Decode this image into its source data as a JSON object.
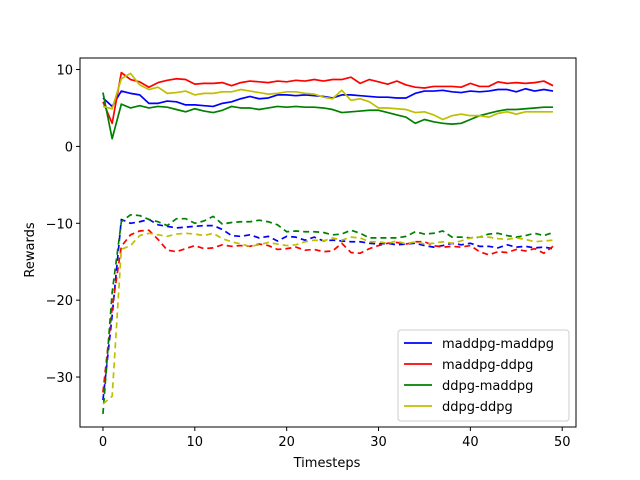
{
  "chart_data": {
    "type": "line",
    "title": "",
    "xlabel": "Timesteps",
    "ylabel": "Rewards",
    "xlim": [
      -2.5,
      51.5
    ],
    "ylim": [
      -36.5,
      11.5
    ],
    "xticks": [
      0,
      10,
      20,
      30,
      40,
      50
    ],
    "yticks": [
      10,
      0,
      -10,
      -20,
      -30
    ],
    "xtick_labels": [
      "0",
      "10",
      "20",
      "30",
      "40",
      "50"
    ],
    "ytick_labels": [
      "10",
      "0",
      "−10",
      "−20",
      "−30"
    ],
    "grid": false,
    "legend_position": "lower-right",
    "x": [
      0,
      1,
      2,
      3,
      4,
      5,
      6,
      7,
      8,
      9,
      10,
      11,
      12,
      13,
      14,
      15,
      16,
      17,
      18,
      19,
      20,
      21,
      22,
      23,
      24,
      25,
      26,
      27,
      28,
      29,
      30,
      31,
      32,
      33,
      34,
      35,
      36,
      37,
      38,
      39,
      40,
      41,
      42,
      43,
      44,
      45,
      46,
      47,
      48,
      49
    ],
    "series": [
      {
        "name": "maddpg-maddpg",
        "color": "#0000ff",
        "solid": [
          6.3,
          5.2,
          7.2,
          6.9,
          6.7,
          5.6,
          5.6,
          5.9,
          5.8,
          5.4,
          5.4,
          5.3,
          5.2,
          5.6,
          5.8,
          6.2,
          6.5,
          6.2,
          6.3,
          6.7,
          6.7,
          6.6,
          6.7,
          6.6,
          6.5,
          6.3,
          6.7,
          6.7,
          6.6,
          6.5,
          6.4,
          6.4,
          6.3,
          6.3,
          6.9,
          7.2,
          7.2,
          7.3,
          7.1,
          7.0,
          7.2,
          7.1,
          7.2,
          7.4,
          7.4,
          7.1,
          7.5,
          7.2,
          7.4,
          7.2
        ],
        "dashed": [
          -33.0,
          -22.0,
          -9.5,
          -10.0,
          -9.8,
          -9.5,
          -10.2,
          -10.4,
          -10.6,
          -10.5,
          -10.4,
          -10.3,
          -10.3,
          -10.8,
          -11.6,
          -11.7,
          -11.5,
          -11.9,
          -11.7,
          -12.3,
          -11.7,
          -11.8,
          -12.2,
          -11.8,
          -12.3,
          -12.2,
          -12.3,
          -12.4,
          -12.4,
          -12.6,
          -12.7,
          -12.6,
          -12.8,
          -12.7,
          -12.6,
          -12.9,
          -13.1,
          -12.9,
          -12.6,
          -12.8,
          -12.6,
          -13.0,
          -13.0,
          -13.2,
          -12.8,
          -13.1,
          -13.0,
          -13.2,
          -13.1,
          -13.3
        ]
      },
      {
        "name": "maddpg-ddpg",
        "color": "#ff0000",
        "solid": [
          5.8,
          3.0,
          9.6,
          8.7,
          8.4,
          7.7,
          8.3,
          8.6,
          8.8,
          8.7,
          8.1,
          8.2,
          8.2,
          8.3,
          7.9,
          8.3,
          8.5,
          8.4,
          8.3,
          8.5,
          8.4,
          8.6,
          8.5,
          8.7,
          8.5,
          8.7,
          8.7,
          9.0,
          8.2,
          8.7,
          8.4,
          8.1,
          8.5,
          8.0,
          7.7,
          7.6,
          7.8,
          7.8,
          7.8,
          7.7,
          8.2,
          7.8,
          7.8,
          8.4,
          8.2,
          8.3,
          8.2,
          8.3,
          8.5,
          7.9
        ],
        "dashed": [
          -32.0,
          -21.0,
          -13.0,
          -11.5,
          -11.0,
          -10.9,
          -12.1,
          -13.5,
          -13.7,
          -13.3,
          -12.9,
          -13.3,
          -13.2,
          -12.8,
          -13.0,
          -12.9,
          -13.0,
          -12.7,
          -12.9,
          -13.4,
          -13.3,
          -13.1,
          -13.5,
          -13.4,
          -13.7,
          -13.6,
          -12.6,
          -13.8,
          -13.9,
          -13.3,
          -12.9,
          -12.6,
          -12.5,
          -12.7,
          -12.4,
          -12.4,
          -12.9,
          -13.1,
          -13.0,
          -13.1,
          -12.9,
          -13.7,
          -14.1,
          -13.7,
          -13.8,
          -13.4,
          -13.6,
          -13.3,
          -13.9,
          -13.0
        ]
      },
      {
        "name": "ddpg-maddpg",
        "color": "#008000",
        "solid": [
          7.0,
          1.0,
          5.5,
          5.0,
          5.3,
          5.0,
          5.2,
          5.1,
          4.8,
          4.5,
          4.9,
          4.6,
          4.4,
          4.7,
          5.2,
          5.0,
          5.0,
          4.8,
          5.0,
          5.2,
          5.1,
          5.2,
          5.1,
          5.1,
          5.0,
          4.8,
          4.4,
          4.5,
          4.6,
          4.7,
          4.7,
          4.4,
          4.1,
          3.8,
          3.0,
          3.5,
          3.2,
          3.0,
          2.9,
          3.0,
          3.5,
          4.0,
          4.3,
          4.6,
          4.8,
          4.8,
          4.9,
          5.0,
          5.1,
          5.1
        ],
        "dashed": [
          -34.8,
          -19.0,
          -9.8,
          -8.9,
          -9.0,
          -9.5,
          -9.8,
          -10.3,
          -9.4,
          -9.4,
          -10.0,
          -9.7,
          -9.1,
          -10.1,
          -9.9,
          -9.8,
          -9.8,
          -9.6,
          -9.8,
          -10.2,
          -11.1,
          -11.0,
          -11.1,
          -11.1,
          -11.2,
          -11.5,
          -11.4,
          -10.9,
          -11.3,
          -11.9,
          -11.9,
          -11.9,
          -11.9,
          -11.7,
          -11.1,
          -11.4,
          -11.3,
          -11.0,
          -11.8,
          -11.8,
          -11.9,
          -11.8,
          -11.4,
          -11.3,
          -11.6,
          -11.8,
          -11.6,
          -11.3,
          -11.6,
          -11.2
        ]
      },
      {
        "name": "ddpg-ddpg",
        "color": "#bfbf00",
        "solid": [
          5.2,
          4.9,
          8.8,
          9.5,
          8.0,
          7.4,
          7.7,
          6.9,
          7.0,
          7.2,
          6.7,
          6.9,
          6.9,
          7.1,
          7.1,
          7.4,
          7.2,
          7.0,
          6.8,
          6.9,
          7.1,
          7.1,
          6.9,
          6.8,
          6.4,
          6.2,
          7.3,
          6.0,
          6.2,
          5.8,
          5.0,
          5.0,
          4.9,
          4.8,
          4.4,
          4.5,
          4.1,
          3.5,
          4.0,
          4.2,
          4.0,
          4.0,
          3.8,
          4.3,
          4.5,
          4.2,
          4.5,
          4.5,
          4.5,
          4.5
        ],
        "dashed": [
          -33.5,
          -32.5,
          -13.4,
          -12.9,
          -11.6,
          -11.3,
          -11.5,
          -11.7,
          -11.4,
          -11.3,
          -11.4,
          -11.6,
          -11.3,
          -12.0,
          -12.4,
          -12.7,
          -13.0,
          -12.8,
          -12.5,
          -12.7,
          -12.9,
          -12.8,
          -12.4,
          -12.2,
          -12.3,
          -11.9,
          -12.2,
          -11.8,
          -11.9,
          -12.4,
          -12.4,
          -12.6,
          -12.3,
          -12.7,
          -12.4,
          -12.7,
          -12.6,
          -12.4,
          -12.6,
          -12.3,
          -11.9,
          -11.8,
          -11.8,
          -12.0,
          -12.1,
          -11.9,
          -12.1,
          -12.4,
          -12.3,
          -12.2
        ]
      }
    ]
  }
}
